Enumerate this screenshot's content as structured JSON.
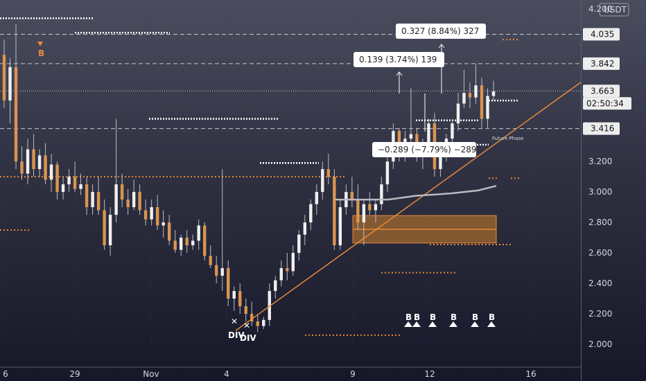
{
  "currency": "USDT",
  "chart_data": {
    "type": "candlestick",
    "ylim": [
      1.85,
      4.26
    ],
    "y_ticks": [
      "4.200",
      "4.035",
      "3.842",
      "3.663",
      "3.416",
      "3.200",
      "3.000",
      "2.800",
      "2.600",
      "2.400",
      "2.200",
      "2.000"
    ],
    "x_ticks": [
      "6",
      "29",
      "Nov",
      "4",
      "9",
      "12",
      "16"
    ],
    "price_labels": [
      {
        "value": "4.035",
        "price": 4.035,
        "style": "light"
      },
      {
        "value": "3.842",
        "price": 3.842,
        "style": "light"
      },
      {
        "value": "3.663",
        "price": 3.663,
        "style": "light"
      },
      {
        "value": "3.416",
        "price": 3.416,
        "style": "light"
      }
    ],
    "countdown": "02:50:34",
    "measurements": [
      {
        "text": "0.327 (8.84%) 327"
      },
      {
        "text": "0.139 (3.74%) 139"
      },
      {
        "text": "−0.289 (−7.79%) −289"
      }
    ],
    "annotations": {
      "future_label": "Future Phase",
      "top_signal": "B",
      "div_labels": [
        "DIV",
        "DIV"
      ],
      "buy_signals": [
        "B",
        "B",
        "B",
        "B",
        "B",
        "B"
      ]
    },
    "candles": [
      [
        3.9,
        4.0,
        3.55,
        3.6
      ],
      [
        3.6,
        3.88,
        3.45,
        3.82
      ],
      [
        3.82,
        4.1,
        3.15,
        3.2
      ],
      [
        3.2,
        3.3,
        3.08,
        3.12
      ],
      [
        3.12,
        3.35,
        3.05,
        3.28
      ],
      [
        3.28,
        3.38,
        3.1,
        3.15
      ],
      [
        3.15,
        3.28,
        3.1,
        3.24
      ],
      [
        3.24,
        3.32,
        3.05,
        3.08
      ],
      [
        3.08,
        3.25,
        3.0,
        3.18
      ],
      [
        3.18,
        3.2,
        2.95,
        3.0
      ],
      [
        3.0,
        3.1,
        2.95,
        3.05
      ],
      [
        3.05,
        3.15,
        3.0,
        3.1
      ],
      [
        3.1,
        3.2,
        3.0,
        3.02
      ],
      [
        3.02,
        3.12,
        2.98,
        3.05
      ],
      [
        3.05,
        3.1,
        2.85,
        2.9
      ],
      [
        2.9,
        3.05,
        2.85,
        3.0
      ],
      [
        3.0,
        3.1,
        2.85,
        2.88
      ],
      [
        2.88,
        2.95,
        2.62,
        2.65
      ],
      [
        2.65,
        2.9,
        2.58,
        2.85
      ],
      [
        2.85,
        3.48,
        2.8,
        3.05
      ],
      [
        3.05,
        3.12,
        2.9,
        2.95
      ],
      [
        2.95,
        3.02,
        2.85,
        2.9
      ],
      [
        2.9,
        3.08,
        2.88,
        3.0
      ],
      [
        3.0,
        3.05,
        2.85,
        2.88
      ],
      [
        2.88,
        2.95,
        2.78,
        2.82
      ],
      [
        2.82,
        2.95,
        2.78,
        2.9
      ],
      [
        2.9,
        2.98,
        2.75,
        2.78
      ],
      [
        2.78,
        2.88,
        2.7,
        2.8
      ],
      [
        2.8,
        2.85,
        2.65,
        2.68
      ],
      [
        2.68,
        2.75,
        2.6,
        2.62
      ],
      [
        2.62,
        2.72,
        2.58,
        2.7
      ],
      [
        2.7,
        2.75,
        2.6,
        2.65
      ],
      [
        2.65,
        2.72,
        2.62,
        2.68
      ],
      [
        2.68,
        2.82,
        2.62,
        2.78
      ],
      [
        2.78,
        2.8,
        2.55,
        2.58
      ],
      [
        2.58,
        2.65,
        2.5,
        2.52
      ],
      [
        2.52,
        2.58,
        2.4,
        2.45
      ],
      [
        2.45,
        3.15,
        2.35,
        2.5
      ],
      [
        2.5,
        2.55,
        2.25,
        2.3
      ],
      [
        2.3,
        2.38,
        2.22,
        2.35
      ],
      [
        2.35,
        2.4,
        2.2,
        2.25
      ],
      [
        2.25,
        2.3,
        2.15,
        2.2
      ],
      [
        2.2,
        2.28,
        2.12,
        2.15
      ],
      [
        2.15,
        2.2,
        2.08,
        2.12
      ],
      [
        2.12,
        2.18,
        2.1,
        2.16
      ],
      [
        2.16,
        2.4,
        2.12,
        2.35
      ],
      [
        2.35,
        2.45,
        2.3,
        2.42
      ],
      [
        2.42,
        2.55,
        2.38,
        2.5
      ],
      [
        2.5,
        2.6,
        2.42,
        2.48
      ],
      [
        2.48,
        2.65,
        2.45,
        2.6
      ],
      [
        2.6,
        2.75,
        2.55,
        2.72
      ],
      [
        2.72,
        2.85,
        2.65,
        2.8
      ],
      [
        2.8,
        2.95,
        2.75,
        2.92
      ],
      [
        2.92,
        3.05,
        2.85,
        3.0
      ],
      [
        3.0,
        3.2,
        2.95,
        3.15
      ],
      [
        3.15,
        3.25,
        3.05,
        3.1
      ],
      [
        3.1,
        3.15,
        2.62,
        2.65
      ],
      [
        2.65,
        2.95,
        2.62,
        2.9
      ],
      [
        2.9,
        3.05,
        2.85,
        3.0
      ],
      [
        3.0,
        3.1,
        2.9,
        2.95
      ],
      [
        2.95,
        3.05,
        2.75,
        2.8
      ],
      [
        2.8,
        2.95,
        2.65,
        2.92
      ],
      [
        2.92,
        3.0,
        2.85,
        2.88
      ],
      [
        2.88,
        2.95,
        2.8,
        2.92
      ],
      [
        2.92,
        3.1,
        2.88,
        3.05
      ],
      [
        3.05,
        3.25,
        3.0,
        3.2
      ],
      [
        3.2,
        3.45,
        3.15,
        3.4
      ],
      [
        3.4,
        3.42,
        3.2,
        3.25
      ],
      [
        3.25,
        3.4,
        3.2,
        3.35
      ],
      [
        3.35,
        3.68,
        3.3,
        3.38
      ],
      [
        3.38,
        3.42,
        3.2,
        3.25
      ],
      [
        3.25,
        3.35,
        3.15,
        3.3
      ],
      [
        3.3,
        3.48,
        3.25,
        3.45
      ],
      [
        3.45,
        3.52,
        3.1,
        3.15
      ],
      [
        3.15,
        3.28,
        3.1,
        3.25
      ],
      [
        3.25,
        3.38,
        3.2,
        3.35
      ],
      [
        3.35,
        3.48,
        3.3,
        3.45
      ],
      [
        3.45,
        3.65,
        3.4,
        3.58
      ],
      [
        3.58,
        3.8,
        3.55,
        3.65
      ],
      [
        3.65,
        3.72,
        3.55,
        3.62
      ],
      [
        3.62,
        3.84,
        3.58,
        3.7
      ],
      [
        3.7,
        3.75,
        3.42,
        3.48
      ],
      [
        3.48,
        3.68,
        3.42,
        3.63
      ],
      [
        3.63,
        3.73,
        3.6,
        3.66
      ]
    ]
  }
}
